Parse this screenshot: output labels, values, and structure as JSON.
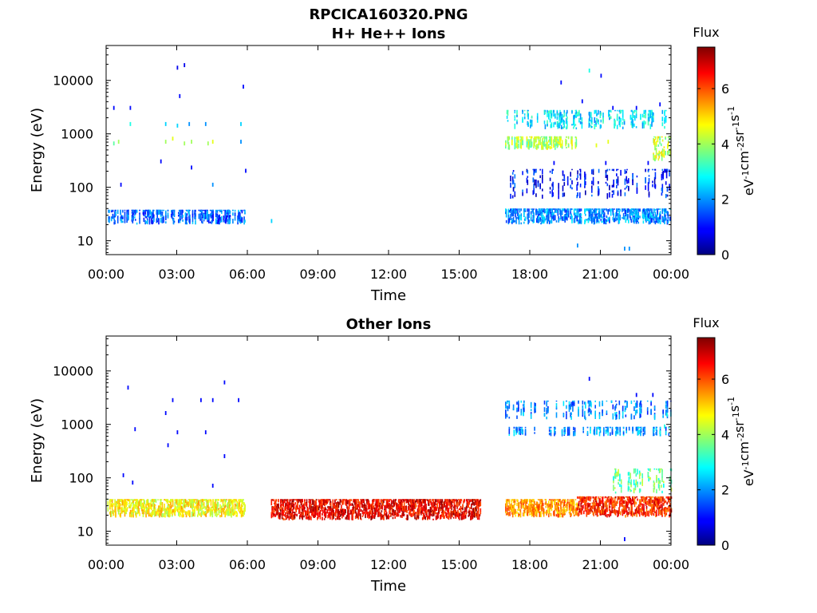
{
  "figure_title": "RPCICA160320.PNG",
  "colorbar": {
    "title": "Flux",
    "label_base": [
      "eV",
      "cm",
      "sr",
      "s"
    ],
    "label_exp": [
      "-1",
      "-2",
      "-1",
      "-1"
    ],
    "range": [
      0,
      7.5
    ],
    "ticks": [
      "0",
      "2",
      "4",
      "6"
    ],
    "tick_values": [
      0,
      2,
      4,
      6
    ],
    "colormap": "jet"
  },
  "chart_data": [
    {
      "type": "heatmap",
      "title": "H+ He++ Ions",
      "xlabel": "Time",
      "ylabel": "Energy (eV)",
      "xlim": [
        "00:00",
        "24:00"
      ],
      "x_ticks": [
        "00:00",
        "03:00",
        "06:00",
        "09:00",
        "12:00",
        "15:00",
        "18:00",
        "21:00",
        "00:00"
      ],
      "y_scale": "log",
      "ylim": [
        5.5,
        45000
      ],
      "y_ticks": [
        "10",
        "100",
        "1000",
        "10000"
      ],
      "y_tick_values": [
        10,
        100,
        1000,
        10000
      ],
      "bands": [
        {
          "t_start": 0.05,
          "t_end": 5.9,
          "e_low": 20,
          "e_high": 38,
          "flux": 1.6,
          "density": 0.55
        },
        {
          "t_start": 16.95,
          "t_end": 24.0,
          "e_low": 20,
          "e_high": 40,
          "flux": 1.9,
          "density": 0.8
        },
        {
          "t_start": 16.95,
          "t_end": 24.0,
          "e_low": 60,
          "e_high": 220,
          "flux": 1.0,
          "density": 0.22
        },
        {
          "t_start": 16.95,
          "t_end": 20.0,
          "e_low": 500,
          "e_high": 900,
          "flux": 4.0,
          "density": 0.6
        },
        {
          "t_start": 23.2,
          "t_end": 24.0,
          "e_low": 300,
          "e_high": 900,
          "flux": 4.2,
          "density": 0.6
        },
        {
          "t_start": 16.95,
          "t_end": 24.0,
          "e_low": 1200,
          "e_high": 2800,
          "flux": 2.6,
          "density": 0.35
        }
      ],
      "dots": [
        {
          "t": 0.3,
          "e": 650,
          "flux": 3.5
        },
        {
          "t": 0.5,
          "e": 700,
          "flux": 4
        },
        {
          "t": 0.3,
          "e": 3000,
          "flux": 1
        },
        {
          "t": 1.0,
          "e": 3000,
          "flux": 1
        },
        {
          "t": 1.0,
          "e": 1500,
          "flux": 3
        },
        {
          "t": 0.6,
          "e": 110,
          "flux": 1
        },
        {
          "t": 2.5,
          "e": 700,
          "flux": 4
        },
        {
          "t": 2.8,
          "e": 800,
          "flux": 4.5
        },
        {
          "t": 3.3,
          "e": 650,
          "flux": 4
        },
        {
          "t": 3.6,
          "e": 700,
          "flux": 4
        },
        {
          "t": 4.3,
          "e": 650,
          "flux": 4
        },
        {
          "t": 4.5,
          "e": 700,
          "flux": 4.5
        },
        {
          "t": 2.5,
          "e": 1500,
          "flux": 2.5
        },
        {
          "t": 3.0,
          "e": 1400,
          "flux": 2.5
        },
        {
          "t": 3.5,
          "e": 1500,
          "flux": 2
        },
        {
          "t": 4.2,
          "e": 1500,
          "flux": 2
        },
        {
          "t": 5.7,
          "e": 1500,
          "flux": 2.5
        },
        {
          "t": 3.0,
          "e": 17000,
          "flux": 0.8
        },
        {
          "t": 3.3,
          "e": 19000,
          "flux": 0.8
        },
        {
          "t": 3.1,
          "e": 5000,
          "flux": 1
        },
        {
          "t": 5.8,
          "e": 7500,
          "flux": 1
        },
        {
          "t": 2.3,
          "e": 300,
          "flux": 1
        },
        {
          "t": 3.6,
          "e": 230,
          "flux": 1
        },
        {
          "t": 4.5,
          "e": 110,
          "flux": 2
        },
        {
          "t": 5.9,
          "e": 200,
          "flux": 1
        },
        {
          "t": 7.0,
          "e": 23,
          "flux": 2.5
        },
        {
          "t": 5.7,
          "e": 700,
          "flux": 2
        },
        {
          "t": 19.3,
          "e": 9000,
          "flux": 1
        },
        {
          "t": 20.5,
          "e": 15000,
          "flux": 3
        },
        {
          "t": 21.0,
          "e": 12000,
          "flux": 1
        },
        {
          "t": 20.2,
          "e": 4000,
          "flux": 1
        },
        {
          "t": 21.5,
          "e": 3000,
          "flux": 1
        },
        {
          "t": 22.5,
          "e": 3000,
          "flux": 1
        },
        {
          "t": 23.5,
          "e": 3500,
          "flux": 1
        },
        {
          "t": 20.0,
          "e": 8,
          "flux": 2
        },
        {
          "t": 22.0,
          "e": 7,
          "flux": 2
        },
        {
          "t": 22.2,
          "e": 7,
          "flux": 2
        },
        {
          "t": 20.8,
          "e": 600,
          "flux": 4.5
        },
        {
          "t": 21.3,
          "e": 700,
          "flux": 4.5
        },
        {
          "t": 21.2,
          "e": 280,
          "flux": 1
        },
        {
          "t": 19.0,
          "e": 280,
          "flux": 1
        },
        {
          "t": 23.0,
          "e": 280,
          "flux": 1
        },
        {
          "t": 23.7,
          "e": 200,
          "flux": 1
        }
      ]
    },
    {
      "type": "heatmap",
      "title": "Other Ions",
      "xlabel": "Time",
      "ylabel": "Energy (eV)",
      "xlim": [
        "00:00",
        "24:00"
      ],
      "x_ticks": [
        "00:00",
        "03:00",
        "06:00",
        "09:00",
        "12:00",
        "15:00",
        "18:00",
        "21:00",
        "00:00"
      ],
      "y_scale": "log",
      "ylim": [
        5.5,
        45000
      ],
      "y_ticks": [
        "10",
        "100",
        "1000",
        "10000"
      ],
      "y_tick_values": [
        10,
        100,
        1000,
        10000
      ],
      "bands": [
        {
          "t_start": 0.05,
          "t_end": 5.9,
          "e_low": 18,
          "e_high": 40,
          "flux": 4.6,
          "density": 0.9
        },
        {
          "t_start": 7.0,
          "t_end": 15.9,
          "e_low": 16,
          "e_high": 40,
          "flux": 6.6,
          "density": 1.0
        },
        {
          "t_start": 16.95,
          "t_end": 20.0,
          "e_low": 18,
          "e_high": 40,
          "flux": 5.4,
          "density": 0.9
        },
        {
          "t_start": 20.0,
          "t_end": 24.0,
          "e_low": 18,
          "e_high": 45,
          "flux": 6.2,
          "density": 0.95
        },
        {
          "t_start": 21.5,
          "t_end": 24.0,
          "e_low": 50,
          "e_high": 150,
          "flux": 3.5,
          "density": 0.35
        },
        {
          "t_start": 16.95,
          "t_end": 24.0,
          "e_low": 1200,
          "e_high": 2800,
          "flux": 1.8,
          "density": 0.3
        },
        {
          "t_start": 16.95,
          "t_end": 24.0,
          "e_low": 600,
          "e_high": 900,
          "flux": 2.0,
          "density": 0.3
        }
      ],
      "dots": [
        {
          "t": 0.9,
          "e": 4800,
          "flux": 1
        },
        {
          "t": 1.2,
          "e": 800,
          "flux": 1
        },
        {
          "t": 0.7,
          "e": 110,
          "flux": 1
        },
        {
          "t": 1.1,
          "e": 80,
          "flux": 1
        },
        {
          "t": 2.5,
          "e": 1600,
          "flux": 1
        },
        {
          "t": 2.8,
          "e": 2800,
          "flux": 1
        },
        {
          "t": 3.0,
          "e": 700,
          "flux": 1
        },
        {
          "t": 2.6,
          "e": 400,
          "flux": 1
        },
        {
          "t": 4.0,
          "e": 2800,
          "flux": 1
        },
        {
          "t": 4.2,
          "e": 700,
          "flux": 1
        },
        {
          "t": 4.5,
          "e": 2800,
          "flux": 1
        },
        {
          "t": 5.0,
          "e": 6000,
          "flux": 1
        },
        {
          "t": 5.0,
          "e": 250,
          "flux": 1
        },
        {
          "t": 5.6,
          "e": 2800,
          "flux": 1
        },
        {
          "t": 4.5,
          "e": 70,
          "flux": 1
        },
        {
          "t": 20.5,
          "e": 7000,
          "flux": 1
        },
        {
          "t": 22.5,
          "e": 3500,
          "flux": 1
        },
        {
          "t": 23.2,
          "e": 3500,
          "flux": 1
        },
        {
          "t": 22.0,
          "e": 7,
          "flux": 1
        },
        {
          "t": 23.8,
          "e": 1500,
          "flux": 3
        },
        {
          "t": 23.7,
          "e": 900,
          "flux": 3
        },
        {
          "t": 23.5,
          "e": 700,
          "flux": 3
        }
      ]
    }
  ]
}
